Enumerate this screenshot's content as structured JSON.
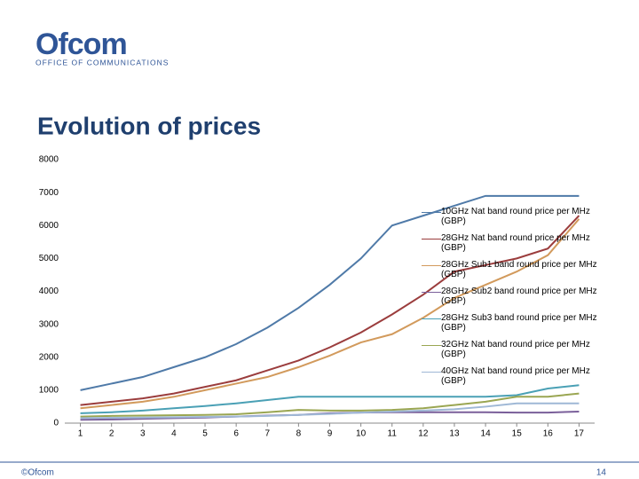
{
  "header": {
    "logo": "Ofcom",
    "tagline": "OFFICE OF COMMUNICATIONS"
  },
  "footer": {
    "copyright": "©Ofcom",
    "page": "14"
  },
  "chart_data": {
    "type": "line",
    "title": "Evolution of prices",
    "x": [
      1,
      2,
      3,
      4,
      5,
      6,
      7,
      8,
      9,
      10,
      11,
      12,
      13,
      14,
      15,
      16,
      17
    ],
    "xlim": [
      0.5,
      17.5
    ],
    "xticks": [
      1,
      2,
      3,
      4,
      5,
      6,
      7,
      8,
      9,
      10,
      11,
      12,
      13,
      14,
      15,
      16,
      17
    ],
    "ylim": [
      0,
      8000
    ],
    "yticks": [
      0,
      1000,
      2000,
      3000,
      4000,
      5000,
      6000,
      7000,
      8000
    ],
    "grid": false,
    "legend": "right",
    "series": [
      {
        "name": "10GHz Nat band round price per MHz (GBP)",
        "color": "#4f7aa8",
        "values": [
          1000,
          1200,
          1400,
          1700,
          2000,
          2400,
          2900,
          3500,
          4200,
          5000,
          6000,
          6300,
          6600,
          6900,
          6900,
          6900,
          6900
        ]
      },
      {
        "name": "28GHz Nat band round price per MHz (GBP)",
        "color": "#9b3d3d",
        "values": [
          550,
          650,
          750,
          900,
          1100,
          1300,
          1600,
          1900,
          2300,
          2750,
          3300,
          3900,
          4600,
          4800,
          5000,
          5300,
          6300
        ]
      },
      {
        "name": "28GHz Sub1 band round price per MHz (GBP)",
        "color": "#d29a5c",
        "values": [
          450,
          550,
          650,
          800,
          1000,
          1200,
          1400,
          1700,
          2050,
          2450,
          2700,
          3200,
          3800,
          4200,
          4600,
          5100,
          6200
        ]
      },
      {
        "name": "28GHz Sub2 band round price per MHz (GBP)",
        "color": "#7a5f9a",
        "values": [
          100,
          110,
          130,
          150,
          170,
          200,
          230,
          250,
          300,
          320,
          330,
          330,
          330,
          330,
          320,
          320,
          350
        ]
      },
      {
        "name": "28GHz Sub3 band round price per MHz (GBP)",
        "color": "#4aa0b5",
        "values": [
          300,
          330,
          380,
          450,
          520,
          600,
          700,
          800,
          800,
          800,
          800,
          800,
          800,
          800,
          850,
          1050,
          1150
        ]
      },
      {
        "name": "32GHz Nat band round price per MHz (GBP)",
        "color": "#9aa652",
        "values": [
          200,
          220,
          230,
          240,
          250,
          270,
          330,
          400,
          380,
          380,
          400,
          450,
          550,
          650,
          800,
          800,
          900
        ]
      },
      {
        "name": "40GHz Nat band round price per MHz (GBP)",
        "color": "#9fb8d6",
        "values": [
          150,
          160,
          170,
          180,
          190,
          200,
          220,
          250,
          280,
          320,
          350,
          380,
          420,
          500,
          600,
          600,
          600
        ]
      }
    ]
  }
}
